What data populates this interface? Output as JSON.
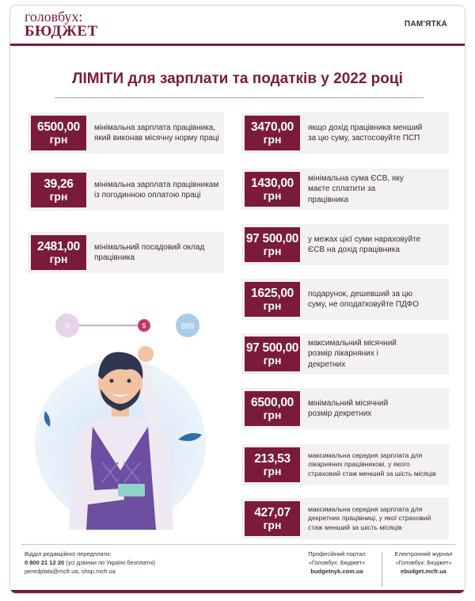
{
  "header": {
    "logo_line1": "головбух:",
    "logo_line2": "БЮДЖЕТ",
    "tag": "ПАМ'ЯТКА"
  },
  "title": "ЛІМІТИ для зарплати та податків у 2022 році",
  "left_items": [
    {
      "amount": "6500,00",
      "unit": "грн",
      "text": "мінімальна зарплата працівника, який виконав місячну норму праці"
    },
    {
      "amount": "39,26",
      "unit": "грн",
      "text": "мінімальна зарплата працівникам із погодинною оплатою праці"
    },
    {
      "amount": "2481,00",
      "unit": "грн",
      "text": "мінімальний посадовий оклад працівника"
    }
  ],
  "right_items": [
    {
      "amount": "3470,00",
      "unit": "грн",
      "text": "якщо дохід працівника менший за цю суму, застосовуйте ПСП"
    },
    {
      "amount": "1430,00",
      "unit": "грн",
      "text": "мінімальна сума ЄСВ, яку маєте сплатити за працівника"
    },
    {
      "amount": "97 500,00",
      "unit": "грн",
      "text": "у межах цієї суми нараховуйте ЄСВ на дохід працівника"
    },
    {
      "amount": "1625,00",
      "unit": "грн",
      "text": "подарунок, дешевший за цю суму, не оподатковуйте ПДФО"
    },
    {
      "amount": "97 500,00",
      "unit": "грн",
      "text": "максимальний місячний розмір лікарняних і декретних"
    },
    {
      "amount": "6500,00",
      "unit": "грн",
      "text": "мінімальний місячний розмір декретних"
    },
    {
      "amount": "213,53",
      "unit": "грн",
      "text": "максимальна середня зарплата для лікарняних працівникові, у якого страховий стаж менший за шість місяців"
    },
    {
      "amount": "427,07",
      "unit": "грн",
      "text": "максимальна середня зарплата для декретних працівниці, у якої страховий стаж менший за шість місяців"
    }
  ],
  "illustration": {
    "slider_min": "0",
    "slider_value": "$",
    "slider_max": "989"
  },
  "footer": {
    "col1_title": "Відділ редакційної передплати:",
    "col1_phone": "0 800 21 12 20",
    "col1_phone_note": "(усі дзвінки по Україні безплатні)",
    "col1_contacts": "peredplata@mcfr.ua, shop.mcfr.ua",
    "col2_title": "Професійний портал",
    "col2_name": "«Головбух: Бюджет»",
    "col2_url": "budgetnyk.com.ua",
    "col3_title": "Електронний журнал",
    "col3_name": "«Головбух: Бюджет»",
    "col3_url": "ebudget.mcfr.ua"
  },
  "colors": {
    "brand": "#7b1b3a",
    "tile_bg": "#f3f1f2",
    "accent_blue": "#5aa6d8"
  }
}
